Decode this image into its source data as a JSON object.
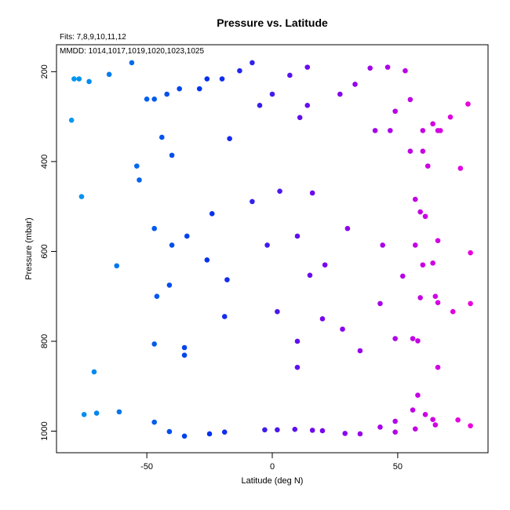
{
  "chart_data": {
    "type": "scatter",
    "title": "Pressure vs. Latitude",
    "annotations": {
      "fits": "Fits: 7,8,9,10,11,12",
      "mmdd": "MMDD: 1014,1017,1019,1020,1023,1025"
    },
    "xlabel": "Latitude (deg N)",
    "ylabel": "Pressure (mbar)",
    "xlim": [
      -86,
      86
    ],
    "ylim": [
      1048,
      140
    ],
    "y_reversed": true,
    "x_ticks": [
      -50,
      0,
      50
    ],
    "y_ticks": [
      200,
      400,
      600,
      800,
      1000
    ],
    "grid": false,
    "color_scale": {
      "min": -80,
      "max": 80,
      "colors": [
        "#0099ee",
        "#0033ee",
        "#8800ee",
        "#ee00dd"
      ]
    },
    "points": [
      {
        "x": -79,
        "y": 216
      },
      {
        "x": -77,
        "y": 216
      },
      {
        "x": -73,
        "y": 222
      },
      {
        "x": -65,
        "y": 206
      },
      {
        "x": -56,
        "y": 180
      },
      {
        "x": -80,
        "y": 308
      },
      {
        "x": -54,
        "y": 410
      },
      {
        "x": -76,
        "y": 478
      },
      {
        "x": -62,
        "y": 632
      },
      {
        "x": -71,
        "y": 868
      },
      {
        "x": -75,
        "y": 963
      },
      {
        "x": -70,
        "y": 960
      },
      {
        "x": -61,
        "y": 957
      },
      {
        "x": -50,
        "y": 261
      },
      {
        "x": -47,
        "y": 261
      },
      {
        "x": -42,
        "y": 250
      },
      {
        "x": -37,
        "y": 238
      },
      {
        "x": -29,
        "y": 238
      },
      {
        "x": -26,
        "y": 216
      },
      {
        "x": -20,
        "y": 216
      },
      {
        "x": -13,
        "y": 198
      },
      {
        "x": -8,
        "y": 180
      },
      {
        "x": -44,
        "y": 346
      },
      {
        "x": -40,
        "y": 386
      },
      {
        "x": -53,
        "y": 441
      },
      {
        "x": -17,
        "y": 349
      },
      {
        "x": -24,
        "y": 516
      },
      {
        "x": -47,
        "y": 549
      },
      {
        "x": -34,
        "y": 566
      },
      {
        "x": -40,
        "y": 586
      },
      {
        "x": -26,
        "y": 619
      },
      {
        "x": -18,
        "y": 663
      },
      {
        "x": -41,
        "y": 675
      },
      {
        "x": -46,
        "y": 700
      },
      {
        "x": -19,
        "y": 745
      },
      {
        "x": -47,
        "y": 806
      },
      {
        "x": -35,
        "y": 814
      },
      {
        "x": -35,
        "y": 831
      },
      {
        "x": -47,
        "y": 980
      },
      {
        "x": -41,
        "y": 1001
      },
      {
        "x": -35,
        "y": 1011
      },
      {
        "x": -25,
        "y": 1006
      },
      {
        "x": -19,
        "y": 1002
      },
      {
        "x": -8,
        "y": 489
      },
      {
        "x": -5,
        "y": 275
      },
      {
        "x": 0,
        "y": 250
      },
      {
        "x": 7,
        "y": 208
      },
      {
        "x": 14,
        "y": 190
      },
      {
        "x": -2,
        "y": 586
      },
      {
        "x": 3,
        "y": 466
      },
      {
        "x": 2,
        "y": 734
      },
      {
        "x": 10,
        "y": 858
      },
      {
        "x": -3,
        "y": 997
      },
      {
        "x": 2,
        "y": 997
      },
      {
        "x": 9,
        "y": 996
      },
      {
        "x": 10,
        "y": 566
      },
      {
        "x": 10,
        "y": 800
      },
      {
        "x": 11,
        "y": 302
      },
      {
        "x": 14,
        "y": 275
      },
      {
        "x": 16,
        "y": 470
      },
      {
        "x": 15,
        "y": 653
      },
      {
        "x": 21,
        "y": 630
      },
      {
        "x": 20,
        "y": 750
      },
      {
        "x": 16,
        "y": 998
      },
      {
        "x": 20,
        "y": 999
      },
      {
        "x": 29,
        "y": 1005
      },
      {
        "x": 35,
        "y": 1006
      },
      {
        "x": 27,
        "y": 250
      },
      {
        "x": 33,
        "y": 228
      },
      {
        "x": 39,
        "y": 192
      },
      {
        "x": 30,
        "y": 549
      },
      {
        "x": 28,
        "y": 773
      },
      {
        "x": 35,
        "y": 821
      },
      {
        "x": 41,
        "y": 331
      },
      {
        "x": 47,
        "y": 331
      },
      {
        "x": 46,
        "y": 190
      },
      {
        "x": 53,
        "y": 198
      },
      {
        "x": 44,
        "y": 586
      },
      {
        "x": 43,
        "y": 716
      },
      {
        "x": 43,
        "y": 991
      },
      {
        "x": 49,
        "y": 288
      },
      {
        "x": 55,
        "y": 262
      },
      {
        "x": 60,
        "y": 331
      },
      {
        "x": 55,
        "y": 377
      },
      {
        "x": 60,
        "y": 377
      },
      {
        "x": 62,
        "y": 410
      },
      {
        "x": 64,
        "y": 316
      },
      {
        "x": 66,
        "y": 331
      },
      {
        "x": 67,
        "y": 331
      },
      {
        "x": 57,
        "y": 484
      },
      {
        "x": 59,
        "y": 512
      },
      {
        "x": 61,
        "y": 522
      },
      {
        "x": 57,
        "y": 586
      },
      {
        "x": 60,
        "y": 630
      },
      {
        "x": 52,
        "y": 655
      },
      {
        "x": 64,
        "y": 626
      },
      {
        "x": 66,
        "y": 576
      },
      {
        "x": 59,
        "y": 703
      },
      {
        "x": 65,
        "y": 700
      },
      {
        "x": 66,
        "y": 714
      },
      {
        "x": 49,
        "y": 794
      },
      {
        "x": 56,
        "y": 794
      },
      {
        "x": 58,
        "y": 799
      },
      {
        "x": 66,
        "y": 858
      },
      {
        "x": 58,
        "y": 920
      },
      {
        "x": 56,
        "y": 953
      },
      {
        "x": 61,
        "y": 963
      },
      {
        "x": 49,
        "y": 978
      },
      {
        "x": 49,
        "y": 1002
      },
      {
        "x": 57,
        "y": 995
      },
      {
        "x": 64,
        "y": 974
      },
      {
        "x": 65,
        "y": 986
      },
      {
        "x": 71,
        "y": 301
      },
      {
        "x": 78,
        "y": 272
      },
      {
        "x": 75,
        "y": 415
      },
      {
        "x": 79,
        "y": 603
      },
      {
        "x": 72,
        "y": 734
      },
      {
        "x": 79,
        "y": 716
      },
      {
        "x": 74,
        "y": 975
      },
      {
        "x": 79,
        "y": 988
      }
    ]
  }
}
